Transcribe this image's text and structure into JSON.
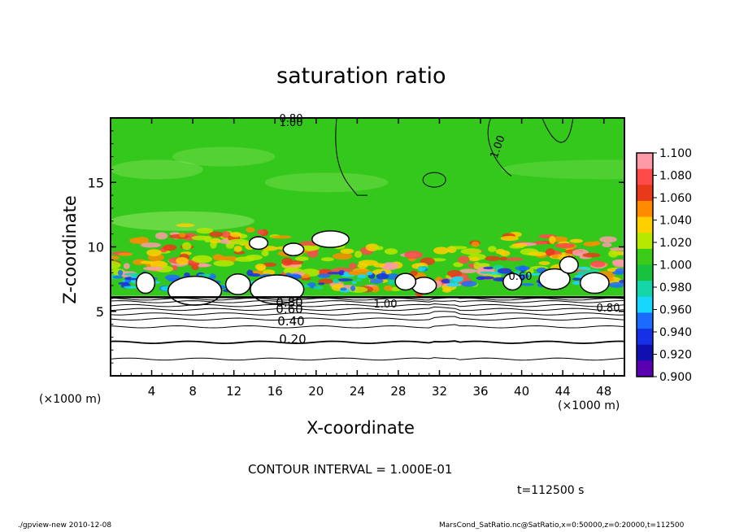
{
  "chart_data": {
    "type": "heatmap",
    "title": "saturation ratio",
    "xlabel": "X-coordinate",
    "ylabel": "Z-coordinate",
    "x_unit_left": "(×1000 m)",
    "x_unit_right": "(×1000 m)",
    "xlim": [
      0,
      50
    ],
    "ylim": [
      0,
      20
    ],
    "x_ticks": [
      "4",
      "8",
      "12",
      "16",
      "20",
      "24",
      "28",
      "32",
      "36",
      "40",
      "44",
      "48"
    ],
    "x_tick_values": [
      4,
      8,
      12,
      16,
      20,
      24,
      28,
      32,
      36,
      40,
      44,
      48
    ],
    "y_ticks": [
      "5",
      "10",
      "15"
    ],
    "y_tick_values": [
      5,
      10,
      15
    ],
    "contour_labels": [
      "0.20",
      "0.40",
      "0.60",
      "0.80",
      "0.80",
      "1.00",
      "1.00",
      "1.00",
      "0.80",
      "0.60"
    ],
    "colorbar": {
      "labels": [
        "1.100",
        "1.080",
        "1.060",
        "1.040",
        "1.020",
        "1.000",
        "0.980",
        "0.960",
        "0.940",
        "0.920",
        "0.900"
      ],
      "colors": [
        "#ff9aa8",
        "#ff4a4a",
        "#e83a1a",
        "#ff8c00",
        "#ffd000",
        "#b7e800",
        "#3bcc1a",
        "#18c23c",
        "#14d4a8",
        "#18d8ff",
        "#1a6cff",
        "#1630e6",
        "#1010b0",
        "#5a00b0"
      ]
    },
    "contour_interval_text": "CONTOUR INTERVAL = 1.000E-01",
    "time_text": "t=112500 s",
    "grid": false
  },
  "footer": {
    "left": "./gpview-new  2010-12-08",
    "right": "MarsCond_SatRatio.nc@SatRatio,x=0:50000,z=0:20000,t=112500"
  }
}
